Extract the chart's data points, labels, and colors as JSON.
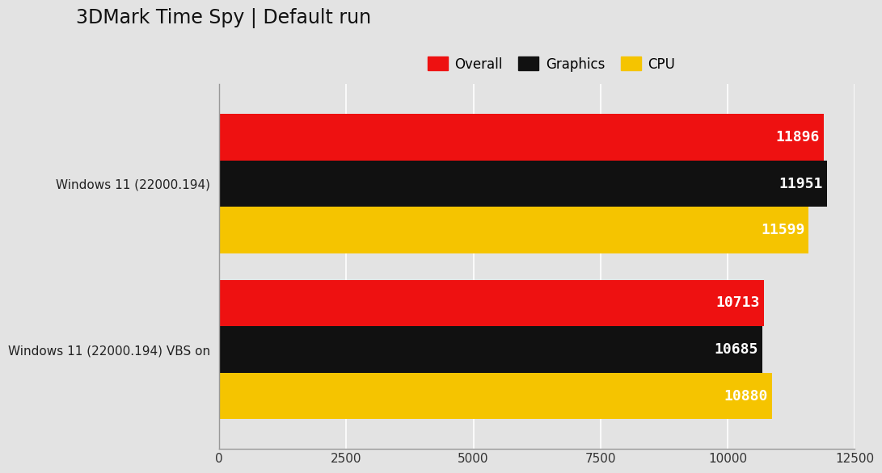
{
  "title": "3DMark Time Spy | Default run",
  "title_fontsize": 17,
  "background_color": "#e3e3e3",
  "plot_bg_color": "#e3e3e3",
  "categories": [
    "Windows 11 (22000.194)",
    "Windows 11 (22000.194) VBS on"
  ],
  "series": [
    {
      "label": "Overall",
      "color": "#ee1111",
      "values": [
        11896,
        10713
      ]
    },
    {
      "label": "Graphics",
      "color": "#111111",
      "values": [
        11951,
        10685
      ]
    },
    {
      "label": "CPU",
      "color": "#f5c400",
      "values": [
        11599,
        10880
      ]
    }
  ],
  "xlim": [
    0,
    12500
  ],
  "xticks": [
    0,
    2500,
    5000,
    7500,
    10000,
    12500
  ],
  "bar_height": 0.28,
  "value_fontsize": 13,
  "value_color": "#ffffff",
  "label_fontsize": 11,
  "legend_fontsize": 12,
  "tick_fontsize": 11,
  "grid_color": "#ffffff",
  "spine_color": "#aaaaaa"
}
